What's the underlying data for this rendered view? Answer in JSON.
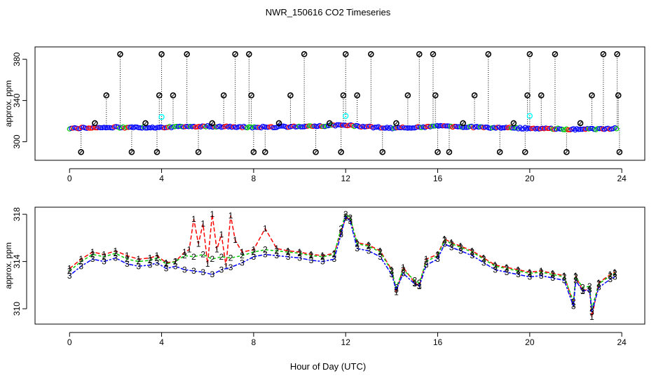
{
  "title": "NWR_150616  CO2 Timeseries",
  "xlabel": "Hour of Day (UTC)",
  "colors": {
    "series1": "#ff0000",
    "series2": "#00cc00",
    "series3": "#0000ff",
    "ref": "#00ffff",
    "axis": "#000000"
  },
  "chart_data": [
    {
      "type": "scatter",
      "ylabel": "approx. ppm",
      "xlim": [
        -1.5,
        25
      ],
      "ylim": [
        282,
        392
      ],
      "xticks": [
        0,
        4,
        8,
        12,
        16,
        20,
        24
      ],
      "xtick_labels": [
        "0",
        "4",
        "8",
        "12",
        "16",
        "20",
        "24"
      ],
      "yticks": [
        300,
        340,
        380
      ],
      "ytick_labels": [
        "300",
        "340",
        "380"
      ],
      "baseline_hours": [
        0,
        2,
        4,
        6,
        8,
        10,
        12,
        14,
        16,
        18,
        20,
        22,
        23.8
      ],
      "baseline_values": [
        313,
        314,
        314,
        315,
        314,
        315,
        316,
        313,
        315,
        314,
        313,
        312,
        313
      ],
      "cal_points": [
        {
          "x": 0.5,
          "y": 290
        },
        {
          "x": 1.1,
          "y": 318
        },
        {
          "x": 1.6,
          "y": 345
        },
        {
          "x": 2.2,
          "y": 385
        },
        {
          "x": 2.7,
          "y": 290
        },
        {
          "x": 3.3,
          "y": 318
        },
        {
          "x": 3.8,
          "y": 290
        },
        {
          "x": 3.9,
          "y": 345
        },
        {
          "x": 4.0,
          "y": 385
        },
        {
          "x": 4.5,
          "y": 345
        },
        {
          "x": 5.1,
          "y": 385
        },
        {
          "x": 5.6,
          "y": 290
        },
        {
          "x": 6.2,
          "y": 318
        },
        {
          "x": 6.7,
          "y": 345
        },
        {
          "x": 7.2,
          "y": 385
        },
        {
          "x": 7.8,
          "y": 385
        },
        {
          "x": 7.9,
          "y": 345
        },
        {
          "x": 8.0,
          "y": 290
        },
        {
          "x": 8.5,
          "y": 290
        },
        {
          "x": 9.1,
          "y": 318
        },
        {
          "x": 9.6,
          "y": 345
        },
        {
          "x": 10.2,
          "y": 385
        },
        {
          "x": 10.7,
          "y": 290
        },
        {
          "x": 11.3,
          "y": 318
        },
        {
          "x": 11.8,
          "y": 290
        },
        {
          "x": 11.9,
          "y": 345
        },
        {
          "x": 12.0,
          "y": 385
        },
        {
          "x": 12.5,
          "y": 345
        },
        {
          "x": 13.1,
          "y": 385
        },
        {
          "x": 13.6,
          "y": 290
        },
        {
          "x": 14.2,
          "y": 318
        },
        {
          "x": 14.7,
          "y": 345
        },
        {
          "x": 15.2,
          "y": 385
        },
        {
          "x": 15.8,
          "y": 385
        },
        {
          "x": 15.9,
          "y": 345
        },
        {
          "x": 16.0,
          "y": 290
        },
        {
          "x": 16.5,
          "y": 290
        },
        {
          "x": 17.1,
          "y": 318
        },
        {
          "x": 17.6,
          "y": 345
        },
        {
          "x": 18.2,
          "y": 385
        },
        {
          "x": 18.7,
          "y": 290
        },
        {
          "x": 19.3,
          "y": 318
        },
        {
          "x": 19.8,
          "y": 290
        },
        {
          "x": 19.9,
          "y": 345
        },
        {
          "x": 20.0,
          "y": 385
        },
        {
          "x": 20.5,
          "y": 345
        },
        {
          "x": 21.1,
          "y": 385
        },
        {
          "x": 21.6,
          "y": 290
        },
        {
          "x": 22.2,
          "y": 318
        },
        {
          "x": 22.7,
          "y": 345
        },
        {
          "x": 23.2,
          "y": 385
        },
        {
          "x": 23.8,
          "y": 385
        },
        {
          "x": 23.85,
          "y": 345
        },
        {
          "x": 23.9,
          "y": 290
        }
      ],
      "ref_points": [
        {
          "x": 4.0,
          "y": 324
        },
        {
          "x": 12.0,
          "y": 325
        },
        {
          "x": 20.0,
          "y": 325
        }
      ]
    },
    {
      "type": "line",
      "ylabel": "approx. ppm",
      "xlim": [
        -1.5,
        25
      ],
      "ylim": [
        308.7,
        318.6
      ],
      "xticks": [
        0,
        4,
        8,
        12,
        16,
        20,
        24
      ],
      "xtick_labels": [
        "0",
        "4",
        "8",
        "12",
        "16",
        "20",
        "24"
      ],
      "yticks": [
        310,
        314,
        318
      ],
      "ytick_labels": [
        "310",
        "314",
        "318"
      ],
      "series": [
        {
          "name": "1",
          "marker": "1",
          "x": [
            0,
            0.5,
            1,
            1.5,
            2,
            2.5,
            3,
            3.5,
            3.8,
            4.2,
            4.6,
            5,
            5.2,
            5.4,
            5.6,
            5.8,
            6,
            6.2,
            6.4,
            6.6,
            6.8,
            7,
            7.2,
            7.5,
            8,
            8.5,
            9,
            9.5,
            10,
            10.5,
            11,
            11.5,
            11.8,
            12,
            12.2,
            12.5,
            13,
            13.5,
            14,
            14.2,
            14.5,
            15,
            15.2,
            15.5,
            16,
            16.3,
            16.6,
            17,
            17.5,
            18,
            18.5,
            19,
            19.5,
            20,
            20.5,
            21,
            21.5,
            21.9,
            22,
            22.3,
            22.6,
            22.7,
            23,
            23.5,
            23.7
          ],
          "y": [
            313.4,
            314.2,
            314.8,
            314.6,
            314.9,
            314.5,
            314.2,
            314.3,
            314.5,
            313.9,
            314,
            314.8,
            315,
            317.6,
            315.5,
            317.2,
            313.8,
            318,
            315,
            316.3,
            313.6,
            317.9,
            315.8,
            314.8,
            315,
            316.8,
            315.1,
            314.9,
            314.8,
            314.6,
            314.5,
            314.7,
            316.5,
            317.7,
            317.6,
            315.6,
            315.4,
            314.9,
            313.3,
            311.4,
            313.5,
            312.2,
            311.9,
            314.2,
            314.6,
            315.9,
            315.6,
            315.3,
            314.9,
            314.3,
            313.7,
            313.5,
            313.3,
            313.1,
            313.2,
            313,
            312.8,
            310.4,
            312.8,
            311.5,
            311.7,
            309.3,
            312.2,
            312.9,
            313.1
          ]
        },
        {
          "name": "2",
          "marker": "2",
          "x": [
            0,
            0.5,
            1,
            1.5,
            2,
            2.5,
            3,
            3.5,
            3.8,
            4.2,
            4.6,
            5,
            5.4,
            5.8,
            6.2,
            6.6,
            7,
            7.5,
            8,
            8.5,
            9,
            9.5,
            10,
            10.5,
            11,
            11.5,
            11.8,
            12,
            12.2,
            12.5,
            13,
            13.5,
            14,
            14.2,
            14.5,
            15,
            15.2,
            15.5,
            16,
            16.3,
            16.6,
            17,
            17.5,
            18,
            18.5,
            19,
            19.5,
            20,
            20.5,
            21,
            21.5,
            21.9,
            22,
            22.3,
            22.6,
            22.7,
            23,
            23.5,
            23.7
          ],
          "y": [
            313.2,
            314,
            314.6,
            314.4,
            314.7,
            314.2,
            314,
            314.1,
            314.3,
            313.8,
            314,
            314.5,
            314.4,
            314.6,
            314.2,
            314.4,
            314.3,
            314.5,
            314.8,
            315,
            314.9,
            314.8,
            314.7,
            314.5,
            314.4,
            314.6,
            316.8,
            318,
            317.7,
            315.5,
            315.3,
            314.8,
            313.2,
            311.8,
            313.3,
            312.4,
            312.2,
            314,
            314.5,
            315.8,
            315.5,
            315.2,
            314.8,
            314.2,
            313.6,
            313.4,
            313.2,
            313,
            313.1,
            312.9,
            312.7,
            310.6,
            312.7,
            311.8,
            311.9,
            310,
            312.1,
            312.8,
            313
          ]
        },
        {
          "name": "3",
          "marker": "3",
          "x": [
            0,
            0.5,
            1,
            1.5,
            2,
            2.5,
            3,
            3.5,
            3.8,
            4.2,
            4.6,
            5,
            5.4,
            5.8,
            6.2,
            6.6,
            7,
            7.5,
            8,
            8.5,
            9,
            9.5,
            10,
            10.5,
            11,
            11.5,
            11.8,
            12,
            12.2,
            12.5,
            13,
            13.5,
            14,
            14.2,
            14.5,
            15,
            15.2,
            15.5,
            16,
            16.3,
            16.6,
            17,
            17.5,
            18,
            18.5,
            19,
            19.5,
            20,
            20.5,
            21,
            21.5,
            21.9,
            22,
            22.3,
            22.6,
            22.7,
            23,
            23.5,
            23.7
          ],
          "y": [
            312.8,
            313.6,
            314.2,
            314,
            314.3,
            313.8,
            313.6,
            313.7,
            313.9,
            313.4,
            313.6,
            313.3,
            313.2,
            313.1,
            312.9,
            313.3,
            313.5,
            313.9,
            314.4,
            314.6,
            314.5,
            314.4,
            314.3,
            314.1,
            314,
            314.2,
            316.3,
            317.8,
            317.4,
            315.1,
            314.9,
            314.4,
            312.9,
            311.6,
            313,
            312.1,
            311.9,
            313.7,
            314.2,
            315.5,
            315.2,
            314.9,
            314.5,
            313.9,
            313.3,
            313.1,
            312.9,
            312.7,
            312.8,
            312.6,
            312.4,
            310.2,
            312.4,
            311.5,
            311.6,
            309.7,
            311.8,
            312.5,
            312.7
          ]
        }
      ]
    }
  ]
}
